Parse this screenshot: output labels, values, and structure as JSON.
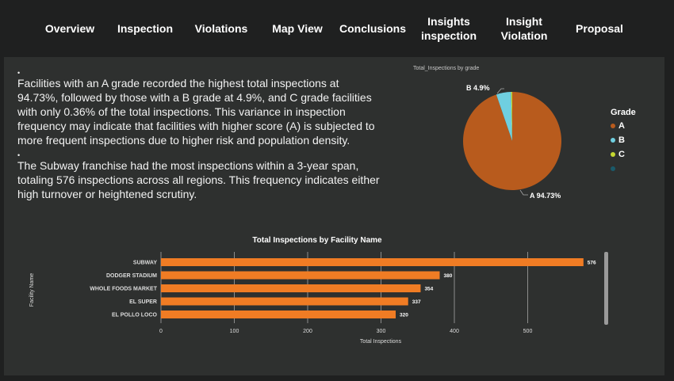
{
  "nav": {
    "items": [
      {
        "label": "Overview"
      },
      {
        "label": "Inspection"
      },
      {
        "label": "Violations"
      },
      {
        "label": "Map View"
      },
      {
        "label": "Conclusions"
      },
      {
        "label": "Insights\ninspection"
      },
      {
        "label": "Insight\nViolation"
      },
      {
        "label": "Proposal"
      }
    ]
  },
  "notes": [
    {
      "bullet": "•",
      "text": "Facilities with an A grade recorded the highest total inspections at 94.73%, followed by those with a B grade at 4.9%, and C grade facilities with only 0.36% of the total inspections. This variance in inspection frequency may indicate that facilities with higher score (A) is subjected to more frequent inspections due to higher risk and population density."
    },
    {
      "bullet": "•",
      "text": "The Subway franchise had the most inspections within a 3-year span, totaling 576 inspections across all regions. This frequency indicates either high turnover or heightened scrutiny."
    }
  ],
  "colors": {
    "orange": "#f07c24",
    "pieA": "#b85b1d",
    "pieB": "#6fcfe0",
    "pieC": "#c5d830",
    "legendExtra": "#1a5a6a"
  },
  "chart_data": [
    {
      "type": "pie",
      "title": "Total_Inspections by grade",
      "legend_title": "Grade",
      "legend_position": "right",
      "slices": [
        {
          "label": "A",
          "value": 94.73,
          "data_label": "A 94.73%"
        },
        {
          "label": "B",
          "value": 4.9,
          "data_label": "B 4.9%"
        },
        {
          "label": "C",
          "value": 0.36,
          "data_label": ""
        }
      ],
      "legend_entries": [
        "A",
        "B",
        "C",
        ""
      ]
    },
    {
      "type": "bar",
      "orientation": "horizontal",
      "title": "Total Inspections by Facility Name",
      "xlabel": "Total Inspections",
      "ylabel": "Facility Name",
      "categories": [
        "SUBWAY",
        "DODGER STADIUM",
        "WHOLE FOODS MARKET",
        "EL SUPER",
        "EL POLLO LOCO"
      ],
      "values": [
        576,
        380,
        354,
        337,
        320
      ],
      "xlim": [
        0,
        620
      ],
      "xticks": [
        0,
        100,
        200,
        300,
        400,
        500
      ],
      "grid": true
    }
  ]
}
